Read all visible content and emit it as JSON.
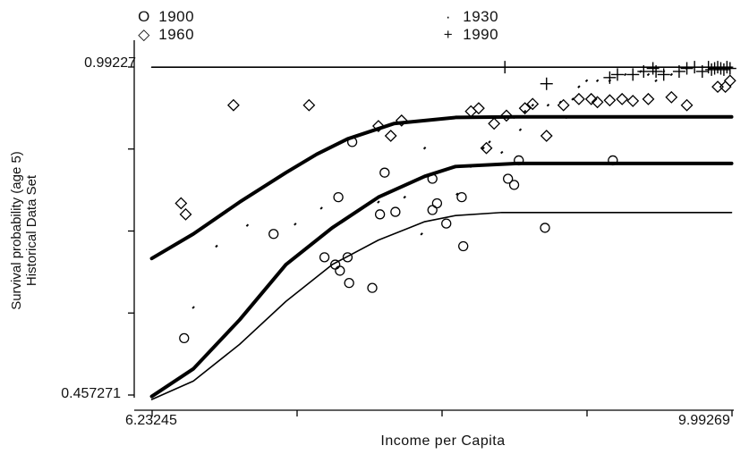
{
  "legend": [
    {
      "symbol": "O",
      "label": "1900"
    },
    {
      "symbol": "◇",
      "label": "1960"
    },
    {
      "symbol": "·",
      "label": "1930"
    },
    {
      "symbol": "+",
      "label": "1990"
    }
  ],
  "axes": {
    "ylabel_line1": "Survival probability (age 5)",
    "ylabel_line2": "Historical Data Set",
    "xlabel": "Income per Capita",
    "ytick_top": "0.99227",
    "ytick_bottom": "0.457271",
    "xtick_left": "6.23245",
    "xtick_right": "9.99269"
  },
  "chart_data": {
    "type": "scatter",
    "xlabel": "Income per Capita",
    "ylabel": "Survival probability (age 5) Historical Data Set",
    "xlim": [
      6.23245,
      9.99269
    ],
    "ylim": [
      0.457271,
      0.99227
    ],
    "grid": false,
    "legend_position": "top",
    "series": [
      {
        "name": "1900",
        "marker": "circle",
        "points": [
          [
            6.44,
            0.55
          ],
          [
            7.02,
            0.72
          ],
          [
            7.35,
            0.682
          ],
          [
            7.42,
            0.67
          ],
          [
            7.44,
            0.78
          ],
          [
            7.45,
            0.66
          ],
          [
            7.5,
            0.682
          ],
          [
            7.51,
            0.64
          ],
          [
            7.53,
            0.87
          ],
          [
            7.66,
            0.632
          ],
          [
            7.71,
            0.752
          ],
          [
            7.74,
            0.82
          ],
          [
            7.81,
            0.756
          ],
          [
            8.05,
            0.759
          ],
          [
            8.14,
            0.737
          ],
          [
            8.08,
            0.77
          ],
          [
            8.24,
            0.78
          ],
          [
            8.05,
            0.81
          ],
          [
            8.25,
            0.7
          ],
          [
            8.54,
            0.81
          ],
          [
            8.58,
            0.8
          ],
          [
            8.61,
            0.84
          ],
          [
            8.78,
            0.73
          ],
          [
            9.22,
            0.84
          ]
        ]
      },
      {
        "name": "1930",
        "marker": "dot",
        "points": [
          [
            6.5,
            0.6
          ],
          [
            6.65,
            0.7
          ],
          [
            6.85,
            0.734
          ],
          [
            7.16,
            0.736
          ],
          [
            7.33,
            0.762
          ],
          [
            7.7,
            0.772
          ],
          [
            7.87,
            0.78
          ],
          [
            7.98,
            0.72
          ],
          [
            8.0,
            0.86
          ],
          [
            8.21,
            0.785
          ],
          [
            8.3,
            0.83
          ],
          [
            8.38,
            0.86
          ],
          [
            8.42,
            0.87
          ],
          [
            8.5,
            0.853
          ],
          [
            8.58,
            0.91
          ],
          [
            8.62,
            0.89
          ],
          [
            8.65,
            0.92
          ],
          [
            8.7,
            0.93
          ],
          [
            8.8,
            0.93
          ],
          [
            8.88,
            0.935
          ],
          [
            8.92,
            0.91
          ],
          [
            8.96,
            0.94
          ],
          [
            9.0,
            0.96
          ],
          [
            9.05,
            0.97
          ],
          [
            9.12,
            0.97
          ],
          [
            9.2,
            0.97
          ],
          [
            9.3,
            0.98
          ],
          [
            9.4,
            0.985
          ],
          [
            9.45,
            0.98
          ],
          [
            9.5,
            0.97
          ],
          [
            9.55,
            0.985
          ],
          [
            9.6,
            0.98
          ],
          [
            9.7,
            0.99
          ],
          [
            9.85,
            0.99
          ]
        ]
      },
      {
        "name": "1960",
        "marker": "diamond",
        "points": [
          [
            6.42,
            0.77
          ],
          [
            6.45,
            0.752
          ],
          [
            6.76,
            0.93
          ],
          [
            7.25,
            0.93
          ],
          [
            7.7,
            0.896
          ],
          [
            7.78,
            0.88
          ],
          [
            7.85,
            0.905
          ],
          [
            8.3,
            0.92
          ],
          [
            8.35,
            0.925
          ],
          [
            8.4,
            0.86
          ],
          [
            8.45,
            0.9
          ],
          [
            8.53,
            0.913
          ],
          [
            8.65,
            0.925
          ],
          [
            8.7,
            0.932
          ],
          [
            8.79,
            0.88
          ],
          [
            8.9,
            0.93
          ],
          [
            9.0,
            0.94
          ],
          [
            9.08,
            0.94
          ],
          [
            9.12,
            0.935
          ],
          [
            9.2,
            0.938
          ],
          [
            9.28,
            0.94
          ],
          [
            9.35,
            0.937
          ],
          [
            9.45,
            0.94
          ],
          [
            9.6,
            0.943
          ],
          [
            9.7,
            0.93
          ],
          [
            9.9,
            0.96
          ],
          [
            9.95,
            0.96
          ],
          [
            9.98,
            0.97
          ]
        ]
      },
      {
        "name": "1990",
        "marker": "plus",
        "points": [
          [
            8.52,
            0.992
          ],
          [
            8.79,
            0.965
          ],
          [
            9.2,
            0.975
          ],
          [
            9.25,
            0.98
          ],
          [
            9.35,
            0.98
          ],
          [
            9.42,
            0.985
          ],
          [
            9.48,
            0.99
          ],
          [
            9.5,
            0.985
          ],
          [
            9.55,
            0.98
          ],
          [
            9.65,
            0.985
          ],
          [
            9.7,
            0.99
          ],
          [
            9.75,
            0.992
          ],
          [
            9.8,
            0.985
          ],
          [
            9.84,
            0.992
          ],
          [
            9.86,
            0.988
          ],
          [
            9.88,
            0.99
          ],
          [
            9.9,
            0.992
          ],
          [
            9.92,
            0.99
          ],
          [
            9.94,
            0.988
          ],
          [
            9.96,
            0.992
          ],
          [
            9.98,
            0.99
          ]
        ]
      }
    ],
    "curves": [
      {
        "style": "thick",
        "points": [
          [
            6.23,
            0.68
          ],
          [
            6.5,
            0.72
          ],
          [
            6.8,
            0.772
          ],
          [
            7.1,
            0.82
          ],
          [
            7.3,
            0.85
          ],
          [
            7.5,
            0.875
          ],
          [
            7.8,
            0.9
          ],
          [
            8.2,
            0.91
          ],
          [
            8.6,
            0.911
          ],
          [
            9.99,
            0.911
          ]
        ]
      },
      {
        "style": "thick",
        "points": [
          [
            6.23,
            0.455
          ],
          [
            6.5,
            0.5
          ],
          [
            6.8,
            0.58
          ],
          [
            7.1,
            0.67
          ],
          [
            7.4,
            0.73
          ],
          [
            7.7,
            0.78
          ],
          [
            8.0,
            0.814
          ],
          [
            8.2,
            0.83
          ],
          [
            8.6,
            0.835
          ],
          [
            9.99,
            0.835
          ]
        ]
      },
      {
        "style": "thin",
        "points": [
          [
            6.23,
            0.45
          ],
          [
            6.5,
            0.48
          ],
          [
            6.8,
            0.54
          ],
          [
            7.1,
            0.61
          ],
          [
            7.4,
            0.67
          ],
          [
            7.7,
            0.71
          ],
          [
            8.0,
            0.74
          ],
          [
            8.2,
            0.75
          ],
          [
            8.5,
            0.755
          ],
          [
            9.99,
            0.755
          ]
        ]
      },
      {
        "style": "thin",
        "points": [
          [
            6.23,
            0.992
          ],
          [
            9.99,
            0.992
          ]
        ]
      }
    ]
  }
}
